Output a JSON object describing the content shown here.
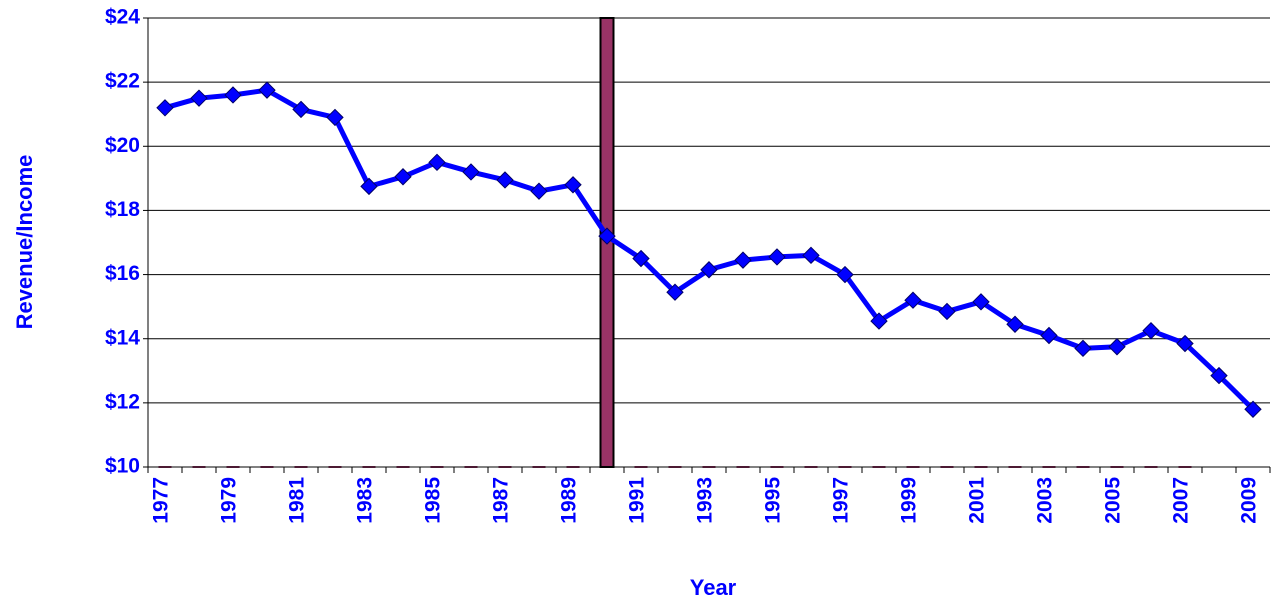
{
  "chart_data": {
    "type": "line",
    "x_label": "Year",
    "y_label": "Revenue/Income",
    "categories": [
      "1977",
      null,
      "1979",
      null,
      "1981",
      null,
      "1983",
      null,
      "1985",
      null,
      "1987",
      null,
      "1989",
      null,
      "1991",
      null,
      "1993",
      null,
      "1995",
      null,
      "1997",
      null,
      "1999",
      null,
      "2001",
      null,
      "2003",
      null,
      "2005",
      null,
      "2007",
      null,
      "2009"
    ],
    "series": [
      {
        "type": "line",
        "color": "#0000ff",
        "values": [
          21.2,
          21.5,
          21.6,
          21.75,
          21.15,
          20.9,
          18.75,
          19.05,
          19.5,
          19.2,
          18.95,
          18.6,
          18.8,
          17.2,
          16.5,
          15.45,
          16.15,
          16.45,
          16.55,
          16.6,
          16.0,
          14.55,
          15.2,
          14.85,
          15.15,
          14.45,
          14.1,
          13.7,
          13.75,
          14.25,
          13.85,
          12.85,
          11.8
        ]
      },
      {
        "type": "bar",
        "color": "#993366",
        "values": [
          10,
          10,
          10,
          10,
          10,
          10,
          10,
          10,
          10,
          10,
          10,
          10,
          10,
          24,
          10,
          10,
          10,
          10,
          10,
          10,
          10,
          10,
          10,
          10,
          10,
          10,
          10,
          10,
          10,
          10,
          10,
          null,
          null
        ]
      }
    ],
    "ylim": [
      10,
      24
    ],
    "yticks": [
      {
        "value": 10,
        "label": "$10"
      },
      {
        "value": 12,
        "label": "$12"
      },
      {
        "value": 14,
        "label": "$14"
      },
      {
        "value": 16,
        "label": "$16"
      },
      {
        "value": 18,
        "label": "$18"
      },
      {
        "value": 20,
        "label": "$20"
      },
      {
        "value": 22,
        "label": "$22"
      },
      {
        "value": 24,
        "label": "$24"
      }
    ],
    "grid": true
  }
}
